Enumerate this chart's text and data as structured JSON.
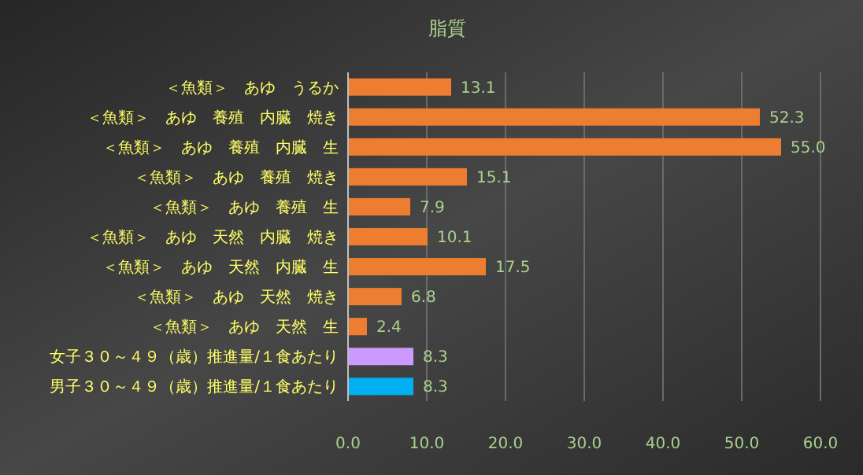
{
  "chart_data": {
    "type": "bar",
    "orientation": "horizontal",
    "title": "脂質",
    "categories": [
      "＜魚類＞　あゆ　うるか",
      "＜魚類＞　あゆ　養殖　内臓　焼き",
      "＜魚類＞　あゆ　養殖　内臓　生",
      "＜魚類＞　あゆ　養殖　焼き",
      "＜魚類＞　あゆ　養殖　生",
      "＜魚類＞　あゆ　天然　内臓　焼き",
      "＜魚類＞　あゆ　天然　内臓　生",
      "＜魚類＞　あゆ　天然　焼き",
      "＜魚類＞　あゆ　天然　生",
      "女子３０～４９（歳）推進量/１食あたり",
      "男子３０～４９（歳）推進量/１食あたり"
    ],
    "values": [
      13.1,
      52.3,
      55.0,
      15.1,
      7.9,
      10.1,
      17.5,
      6.8,
      2.4,
      8.3,
      8.3
    ],
    "value_labels": [
      "13.1",
      "52.3",
      "55.0",
      "15.1",
      "7.9",
      "10.1",
      "17.5",
      "6.8",
      "2.4",
      "8.3",
      "8.3"
    ],
    "colors": [
      "#ed7d31",
      "#ed7d31",
      "#ed7d31",
      "#ed7d31",
      "#ed7d31",
      "#ed7d31",
      "#ed7d31",
      "#ed7d31",
      "#ed7d31",
      "#cc99ff",
      "#00b0f0"
    ],
    "xlim": [
      0,
      60
    ],
    "xticks": [
      {
        "value": 0,
        "label": "0.0"
      },
      {
        "value": 10,
        "label": "10.0"
      },
      {
        "value": 20,
        "label": "20.0"
      },
      {
        "value": 30,
        "label": "30.0"
      },
      {
        "value": 40,
        "label": "40.0"
      },
      {
        "value": 50,
        "label": "50.0"
      },
      {
        "value": 60,
        "label": "60.0"
      }
    ],
    "grid": "x"
  }
}
